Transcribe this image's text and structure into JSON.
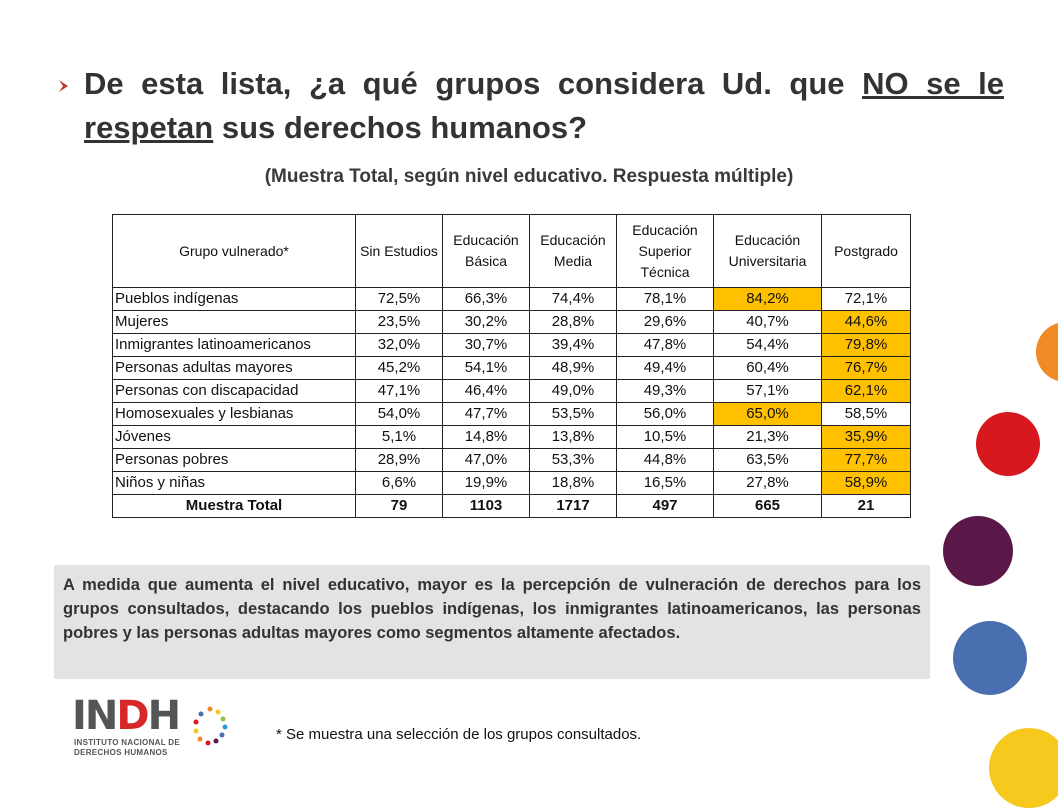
{
  "title": {
    "part1": "De esta lista, ¿a qué grupos considera Ud. que ",
    "underlined": "NO se le respetan",
    "part2": " sus derechos humanos?"
  },
  "subtitle": "(Muestra Total, según nivel educativo. Respuesta múltiple)",
  "table": {
    "headers": {
      "group": "Grupo vulnerado*",
      "col1": "Sin Estudios",
      "col2": "Educación Básica",
      "col3": "Educación Media",
      "col4": "Educación Superior Técnica",
      "col5": "Educación Universitaria",
      "col6": "Postgrado"
    },
    "rows": [
      {
        "group": "Pueblos indígenas",
        "values": [
          "72,5%",
          "66,3%",
          "74,4%",
          "78,1%",
          "84,2%",
          "72,1%"
        ],
        "highlight": 4
      },
      {
        "group": "Mujeres",
        "values": [
          "23,5%",
          "30,2%",
          "28,8%",
          "29,6%",
          "40,7%",
          "44,6%"
        ],
        "highlight": 5
      },
      {
        "group": "Inmigrantes latinoamericanos",
        "values": [
          "32,0%",
          "30,7%",
          "39,4%",
          "47,8%",
          "54,4%",
          "79,8%"
        ],
        "highlight": 5
      },
      {
        "group": "Personas adultas mayores",
        "values": [
          "45,2%",
          "54,1%",
          "48,9%",
          "49,4%",
          "60,4%",
          "76,7%"
        ],
        "highlight": 5
      },
      {
        "group": "Personas con discapacidad",
        "values": [
          "47,1%",
          "46,4%",
          "49,0%",
          "49,3%",
          "57,1%",
          "62,1%"
        ],
        "highlight": 5
      },
      {
        "group": "Homosexuales y lesbianas",
        "values": [
          "54,0%",
          "47,7%",
          "53,5%",
          "56,0%",
          "65,0%",
          "58,5%"
        ],
        "highlight": 4
      },
      {
        "group": "Jóvenes",
        "values": [
          "5,1%",
          "14,8%",
          "13,8%",
          "10,5%",
          "21,3%",
          "35,9%"
        ],
        "highlight": 5
      },
      {
        "group": "Personas pobres",
        "values": [
          "28,9%",
          "47,0%",
          "53,3%",
          "44,8%",
          "63,5%",
          "77,7%"
        ],
        "highlight": 5
      },
      {
        "group": "Niños y niñas",
        "values": [
          "6,6%",
          "19,9%",
          "18,8%",
          "16,5%",
          "27,8%",
          "58,9%"
        ],
        "highlight": 5
      }
    ],
    "total": {
      "label": "Muestra Total",
      "values": [
        "79",
        "1103",
        "1717",
        "497",
        "665",
        "21"
      ]
    }
  },
  "summary": "A medida que aumenta el nivel educativo, mayor es la percepción de vulneración de derechos para los grupos consultados, destacando los pueblos indígenas, los inmigrantes latinoamericanos, las personas pobres y las personas adultas mayores como segmentos altamente afectados.",
  "footnote": "* Se muestra una selección de los grupos consultados.",
  "logo": {
    "main_gray1": "IN",
    "main_red": "D",
    "main_gray2": "H",
    "line1": "INSTITUTO NACIONAL DE",
    "line2": "DERECHOS HUMANOS"
  },
  "colors": {
    "highlight": "#ffc000",
    "bullet": "#c0392b",
    "summary_bg": "#e3e3e3",
    "circle_orange": "#f08a24",
    "circle_red": "#d7191f",
    "circle_purple": "#5a1848",
    "circle_blue": "#4a6fb0",
    "circle_yellow": "#f7c81e"
  }
}
